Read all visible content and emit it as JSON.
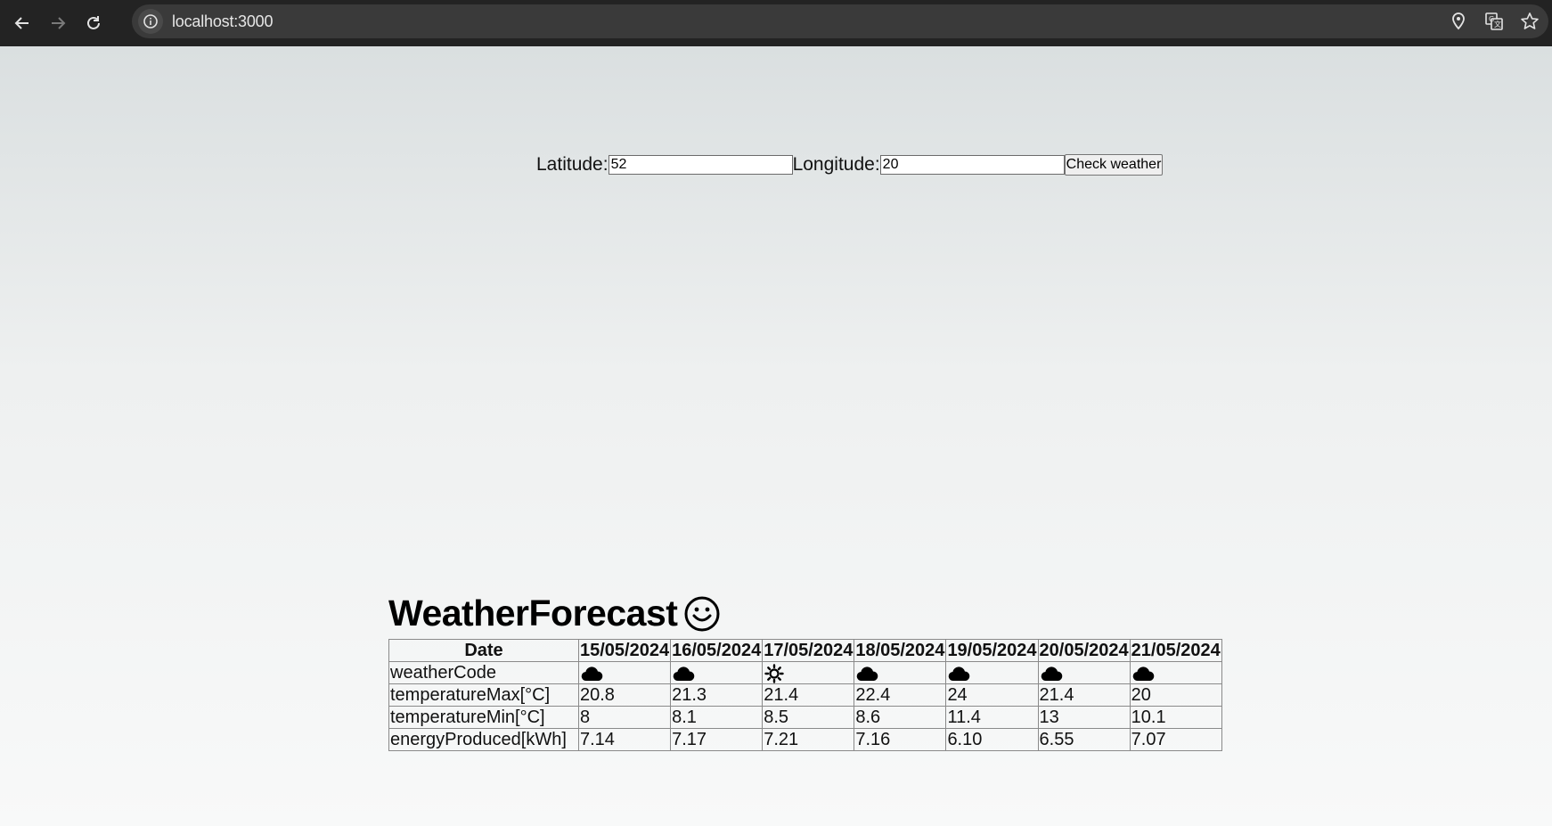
{
  "browser": {
    "url": "localhost:3000"
  },
  "form": {
    "latitude_label": "Latitude:",
    "latitude_value": "52",
    "longitude_label": "Longitude:",
    "longitude_value": "20",
    "submit_label": "Check weather"
  },
  "forecast": {
    "title": "WeatherForecast",
    "header": [
      "Date",
      "15/05/2024",
      "16/05/2024",
      "17/05/2024",
      "18/05/2024",
      "19/05/2024",
      "20/05/2024",
      "21/05/2024"
    ],
    "rows": [
      {
        "label": "weatherCode",
        "icons": [
          "cloud-icon",
          "cloud-icon",
          "sun-icon",
          "cloud-icon",
          "cloud-icon",
          "cloud-icon",
          "cloud-icon"
        ]
      },
      {
        "label": "temperatureMax[°C]",
        "values": [
          "20.8",
          "21.3",
          "21.4",
          "22.4",
          "24",
          "21.4",
          "20"
        ]
      },
      {
        "label": "temperatureMin[°C]",
        "values": [
          "8",
          "8.1",
          "8.5",
          "8.6",
          "11.4",
          "13",
          "10.1"
        ]
      },
      {
        "label": "energyProduced[kWh]",
        "values": [
          "7.14",
          "7.17",
          "7.21",
          "7.16",
          "6.10",
          "6.55",
          "7.07"
        ]
      }
    ]
  }
}
